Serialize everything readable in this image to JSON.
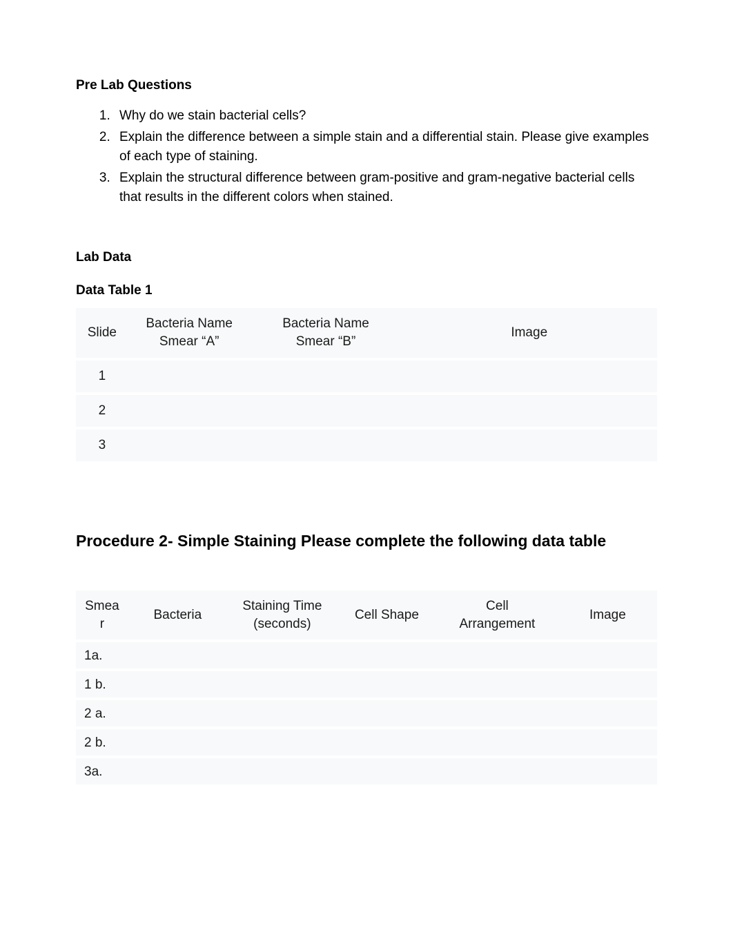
{
  "prelab": {
    "heading": "Pre Lab Questions",
    "items": [
      "Why do we stain bacterial cells?",
      "Explain the difference between a simple stain and a differential stain. Please give examples of each type of staining.",
      "Explain the structural difference between gram-positive and gram-negative bacterial cells that results in the different colors when stained."
    ]
  },
  "labdata": {
    "heading": "Lab Data",
    "table1_heading": "Data Table 1"
  },
  "table1": {
    "headers": {
      "slide": "Slide",
      "smear_a_l1": "Bacteria Name",
      "smear_a_l2": "Smear “A”",
      "smear_b_l1": "Bacteria Name",
      "smear_b_l2": "Smear “B”",
      "image": "Image"
    },
    "rows": [
      {
        "slide": "1",
        "a": "",
        "b": "",
        "image": ""
      },
      {
        "slide": "2",
        "a": "",
        "b": "",
        "image": ""
      },
      {
        "slide": "3",
        "a": "",
        "b": "",
        "image": ""
      }
    ]
  },
  "procedure2": {
    "heading": "Procedure 2- Simple Staining Please complete the following data table"
  },
  "table2": {
    "headers": {
      "smear_l1": "Smea",
      "smear_l2": "r",
      "bacteria": "Bacteria",
      "time_l1": "Staining Time",
      "time_l2": "(seconds)",
      "shape": "Cell Shape",
      "arr_l1": "Cell",
      "arr_l2": "Arrangement",
      "image": "Image"
    },
    "rows": [
      {
        "smear": "1a.",
        "bacteria": "",
        "time": "",
        "shape": "",
        "arr": "",
        "image": ""
      },
      {
        "smear": "1 b.",
        "bacteria": "",
        "time": "",
        "shape": "",
        "arr": "",
        "image": ""
      },
      {
        "smear": "2 a.",
        "bacteria": "",
        "time": "",
        "shape": "",
        "arr": "",
        "image": ""
      },
      {
        "smear": "2 b.",
        "bacteria": "",
        "time": "",
        "shape": "",
        "arr": "",
        "image": ""
      },
      {
        "smear": "3a.",
        "bacteria": "",
        "time": "",
        "shape": "",
        "arr": "",
        "image": ""
      }
    ]
  }
}
